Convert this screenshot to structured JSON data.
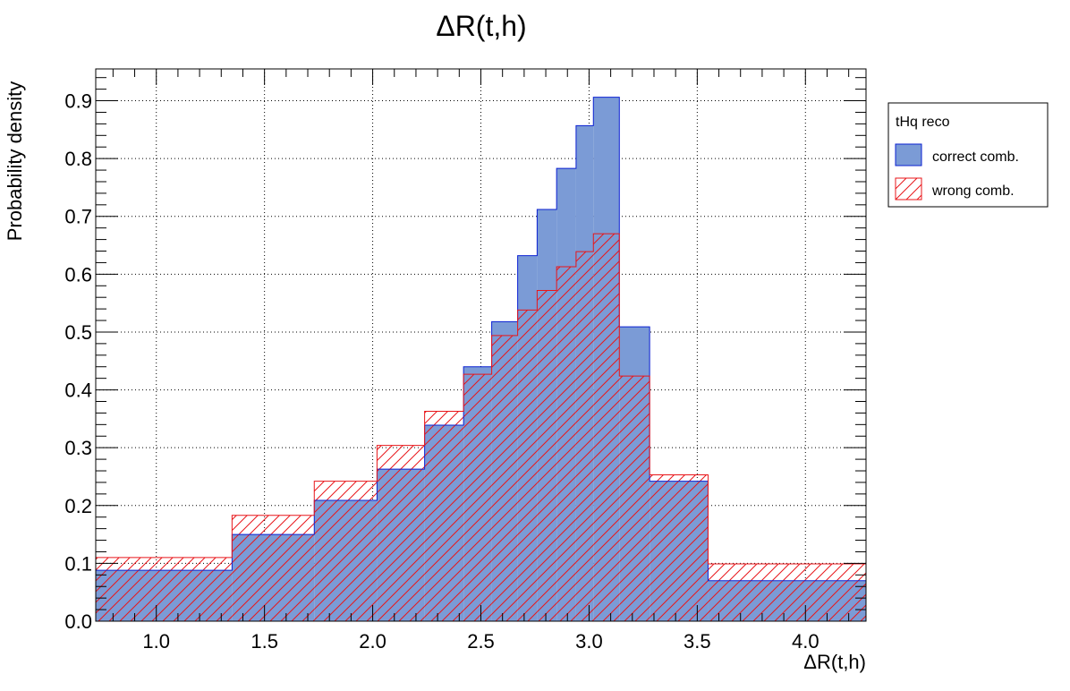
{
  "chart_data": {
    "type": "histogram",
    "title": "ΔR(t,h)",
    "xlabel": "ΔR(t,h)",
    "ylabel": "Probability density",
    "xlim": [
      0.72,
      4.28
    ],
    "ylim": [
      0.0,
      0.955
    ],
    "xticks": [
      1.0,
      1.5,
      2.0,
      2.5,
      3.0,
      3.5,
      4.0
    ],
    "xtick_labels": [
      "1.0",
      "1.5",
      "2.0",
      "2.5",
      "3.0",
      "3.5",
      "4.0"
    ],
    "yticks": [
      0.0,
      0.1,
      0.2,
      0.3,
      0.4,
      0.5,
      0.6,
      0.7,
      0.8,
      0.9
    ],
    "ytick_labels": [
      "0.0",
      "0.1",
      "0.2",
      "0.3",
      "0.4",
      "0.5",
      "0.6",
      "0.7",
      "0.8",
      "0.9"
    ],
    "grid": true,
    "legend": {
      "title": "tHq reco",
      "position": "outside-top-right",
      "entries": [
        {
          "label": "correct comb.",
          "style": "fill"
        },
        {
          "label": "wrong comb.",
          "style": "hatch"
        }
      ]
    },
    "bin_edges": [
      0.72,
      1.35,
      1.73,
      2.02,
      2.24,
      2.42,
      2.55,
      2.67,
      2.76,
      2.85,
      2.94,
      3.02,
      3.14,
      3.28,
      3.55,
      4.28
    ],
    "series": [
      {
        "name": "correct comb.",
        "color": "#0b20d2",
        "fill": "#7b9bd6",
        "values": [
          0.088,
          0.15,
          0.209,
          0.263,
          0.339,
          0.44,
          0.518,
          0.632,
          0.712,
          0.783,
          0.857,
          0.906,
          0.509,
          0.242,
          0.07
        ]
      },
      {
        "name": "wrong comb.",
        "color": "#e8161a",
        "values": [
          0.11,
          0.183,
          0.242,
          0.304,
          0.363,
          0.427,
          0.494,
          0.538,
          0.572,
          0.613,
          0.639,
          0.67,
          0.424,
          0.253,
          0.099
        ]
      }
    ]
  }
}
